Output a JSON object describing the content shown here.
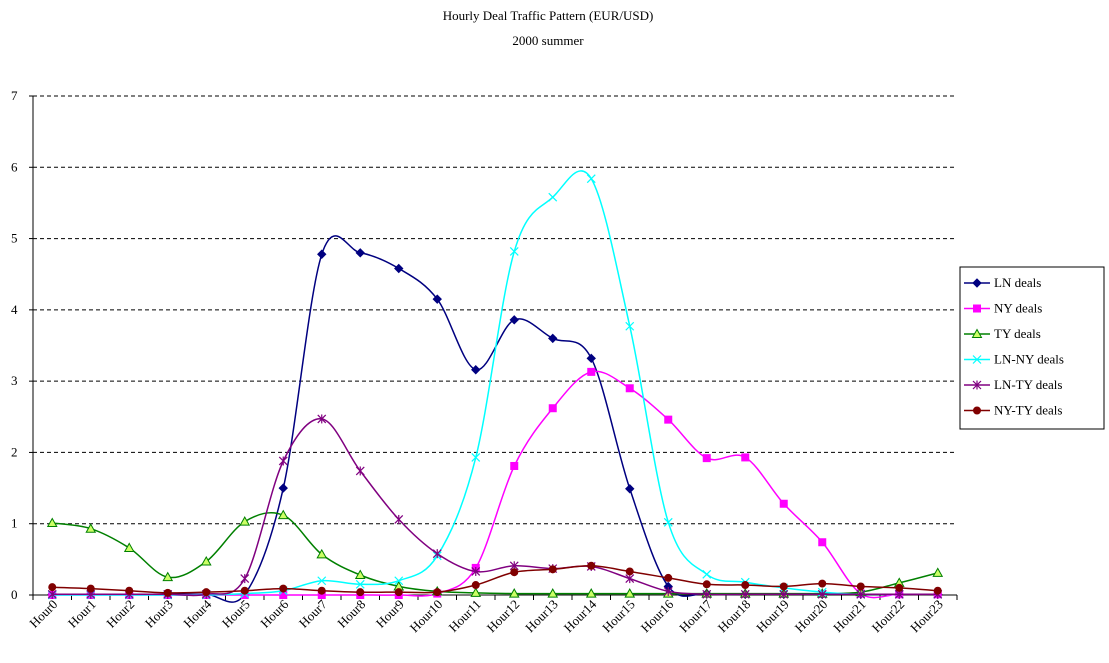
{
  "chart_data": {
    "type": "line",
    "title": "Hourly Deal Traffic Pattern (EUR/USD)",
    "subtitle": "2000 summer",
    "xlabel": "",
    "ylabel": "",
    "ylim": [
      0,
      7
    ],
    "yticks": [
      0,
      1,
      2,
      3,
      4,
      5,
      6,
      7
    ],
    "grid": "horizontal dashed",
    "legend_position": "right",
    "categories": [
      "Hour0",
      "Hour1",
      "Hour2",
      "Hour3",
      "Hour4",
      "Hour5",
      "Hour6",
      "Hour7",
      "Hour8",
      "Hour9",
      "Hour10",
      "Hour11",
      "Hour12",
      "Hour13",
      "Hour14",
      "Hour15",
      "Hour16",
      "Hour17",
      "Hour18",
      "Hour19",
      "Hour20",
      "Hour21",
      "Hour22",
      "Hour23"
    ],
    "series": [
      {
        "name": "LN deals",
        "color": "#000080",
        "marker": "diamond",
        "values": [
          0.01,
          0.01,
          0.01,
          0.01,
          0.01,
          0.01,
          1.5,
          4.78,
          4.8,
          4.58,
          4.15,
          3.16,
          3.86,
          3.6,
          3.32,
          1.49,
          0.12,
          0.02,
          0.01,
          0.01,
          0.01,
          0.01,
          0.01,
          0.01
        ]
      },
      {
        "name": "NY deals",
        "color": "#ff00ff",
        "marker": "square",
        "values": [
          0,
          0,
          0,
          0,
          0,
          0,
          0,
          0,
          0,
          0,
          0.02,
          0.38,
          1.81,
          2.62,
          3.13,
          2.9,
          2.46,
          1.92,
          1.93,
          1.28,
          0.74,
          0.02,
          0.01,
          0.01
        ]
      },
      {
        "name": "TY deals",
        "color": "#008000",
        "fill": "#ccff66",
        "marker": "triangle",
        "values": [
          1.01,
          0.93,
          0.66,
          0.25,
          0.47,
          1.03,
          1.12,
          0.57,
          0.28,
          0.12,
          0.05,
          0.03,
          0.02,
          0.02,
          0.02,
          0.02,
          0.02,
          0.02,
          0.02,
          0.02,
          0.02,
          0.04,
          0.17,
          0.31
        ]
      },
      {
        "name": "LN-NY deals",
        "color": "#00ffff",
        "marker": "x",
        "values": [
          0,
          0,
          0,
          0,
          0,
          0.02,
          0.06,
          0.2,
          0.15,
          0.2,
          0.55,
          1.93,
          4.82,
          5.58,
          5.84,
          3.77,
          1.02,
          0.29,
          0.18,
          0.1,
          0.04,
          0.01,
          0.01,
          0.01
        ]
      },
      {
        "name": "LN-TY deals",
        "color": "#800080",
        "marker": "asterisk",
        "values": [
          0.01,
          0.01,
          0.01,
          0.01,
          0.01,
          0.23,
          1.88,
          2.47,
          1.74,
          1.06,
          0.58,
          0.33,
          0.41,
          0.37,
          0.4,
          0.23,
          0.05,
          0.01,
          0.01,
          0.01,
          0.01,
          0.01,
          0.01,
          0.01
        ]
      },
      {
        "name": "NY-TY deals",
        "color": "#800000",
        "marker": "circle",
        "values": [
          0.11,
          0.09,
          0.06,
          0.03,
          0.04,
          0.06,
          0.09,
          0.06,
          0.04,
          0.04,
          0.04,
          0.14,
          0.32,
          0.36,
          0.41,
          0.33,
          0.24,
          0.15,
          0.14,
          0.12,
          0.16,
          0.12,
          0.1,
          0.06
        ]
      }
    ]
  }
}
